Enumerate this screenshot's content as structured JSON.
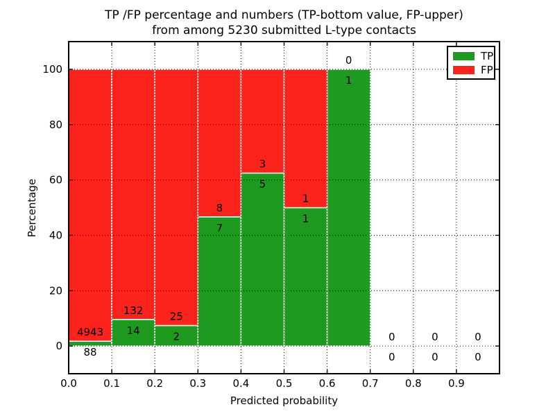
{
  "title": {
    "line1": "TP /FP percentage and numbers (TP-bottom value, FP-upper)",
    "line2": "from among 5230 submitted L-type contacts"
  },
  "axes": {
    "xlabel": "Predicted probability",
    "ylabel": "Percentage",
    "x_tick_labels": [
      "0.0",
      "0.1",
      "0.2",
      "0.3",
      "0.4",
      "0.5",
      "0.6",
      "0.7",
      "0.8",
      "0.9"
    ],
    "y_tick_labels": [
      "0",
      "20",
      "40",
      "60",
      "80",
      "100"
    ],
    "grid": "dotted black, on top of bars"
  },
  "legend": {
    "position": "upper right",
    "items": [
      {
        "label": "TP",
        "color": "#1f9a21"
      },
      {
        "label": "FP",
        "color": "#fb231c"
      }
    ]
  },
  "chart_data": {
    "type": "bar",
    "stacked": true,
    "normalization": "percent of bin total (TP+FP = 100%); counts shown as labels: TP below boundary, FP above",
    "title": "TP /FP percentage and numbers (TP-bottom value, FP-upper) from among 5230 submitted L-type contacts",
    "xlabel": "Predicted probability",
    "ylabel": "Percentage",
    "bin_edges": [
      0.0,
      0.1,
      0.2,
      0.3,
      0.4,
      0.5,
      0.6,
      0.7,
      0.8,
      0.9,
      1.0
    ],
    "xlim": [
      0.0,
      1.0
    ],
    "ylim": [
      -10,
      110
    ],
    "xticks": [
      0.0,
      0.1,
      0.2,
      0.3,
      0.4,
      0.5,
      0.6,
      0.7,
      0.8,
      0.9
    ],
    "yticks": [
      0,
      20,
      40,
      60,
      80,
      100
    ],
    "series": [
      {
        "name": "TP",
        "color": "#1f9a21",
        "counts": [
          88,
          14,
          2,
          7,
          5,
          1,
          1,
          0,
          0,
          0
        ]
      },
      {
        "name": "FP",
        "color": "#fb231c",
        "counts": [
          4943,
          132,
          25,
          8,
          3,
          1,
          0,
          0,
          0,
          0
        ]
      }
    ],
    "tp_percent_of_bin": [
      1.75,
      9.59,
      7.41,
      46.67,
      62.5,
      50.0,
      100.0,
      0,
      0,
      0
    ]
  },
  "style": {
    "bar_edge_color": "#ffffff",
    "grid_color": "#000000",
    "spine_color": "#000000",
    "text_color": "#000000",
    "background": "#ffffff"
  }
}
